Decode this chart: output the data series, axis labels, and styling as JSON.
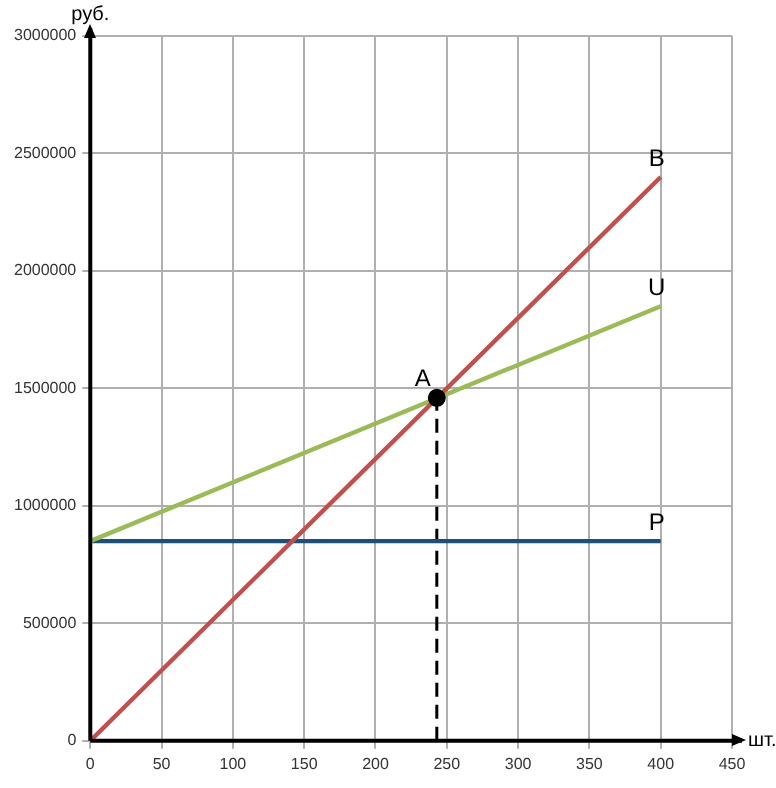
{
  "chart_data": {
    "type": "line",
    "xlabel": "шт.",
    "ylabel": "руб.",
    "xlim": [
      0,
      450
    ],
    "xticks": [
      0,
      50,
      100,
      150,
      200,
      250,
      300,
      350,
      400,
      450
    ],
    "ylim": [
      0,
      3000000
    ],
    "yticks": [
      0,
      500000,
      1000000,
      1500000,
      2000000,
      2500000,
      3000000
    ],
    "grid": true,
    "legend": false,
    "marker": "none",
    "series": [
      {
        "name": "B",
        "color": "#c0504d",
        "x": [
          0,
          400
        ],
        "values": [
          0,
          2400000
        ]
      },
      {
        "name": "U",
        "color": "#9bbb59",
        "x": [
          0,
          400
        ],
        "values": [
          850000,
          1850000
        ]
      },
      {
        "name": "P",
        "color": "#1f4e79",
        "x": [
          0,
          400
        ],
        "values": [
          850000,
          850000
        ]
      },
      {
        "color": "#000000",
        "x": [
          243,
          243
        ],
        "values": [
          0,
          1460000
        ],
        "line_style": "dashed"
      },
      {
        "type": "scatter",
        "marker": "circle",
        "color": "#000000",
        "x": [
          243
        ],
        "values": [
          1460000
        ]
      }
    ],
    "annotations": [
      {
        "text": "A",
        "x": 243,
        "y": 1460000
      }
    ]
  }
}
